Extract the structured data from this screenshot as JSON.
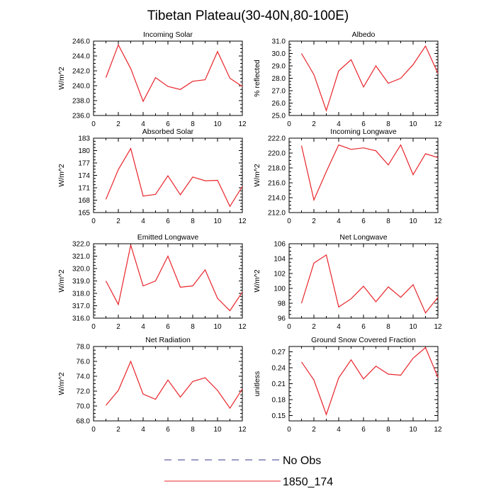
{
  "figure": {
    "title": "Tibetan Plateau(30-40N,80-100E)",
    "legend": [
      {
        "label": "No Obs",
        "color": "#3a3a8c",
        "dash": true
      },
      {
        "label": "1850_174",
        "color": "#e8242a",
        "dash": false
      }
    ]
  },
  "chart_data": [
    {
      "type": "line",
      "title": "Incoming Solar",
      "ylabel": "W/m^2",
      "xlim": [
        0,
        12
      ],
      "ylim": [
        236,
        246
      ],
      "xticks": [
        "0",
        "2",
        "4",
        "6",
        "8",
        "10",
        "12"
      ],
      "yticks": [
        "236.0",
        "238.0",
        "240.0",
        "242.0",
        "244.0",
        "246.0"
      ],
      "x": [
        1,
        2,
        3,
        4,
        5,
        6,
        7,
        8,
        9,
        10,
        11,
        12
      ],
      "series": [
        {
          "name": "1850_174",
          "color": "#e8242a",
          "values": [
            241.1,
            245.5,
            242.3,
            237.9,
            241.1,
            239.9,
            239.5,
            240.6,
            240.8,
            244.6,
            241.0,
            239.9
          ]
        }
      ]
    },
    {
      "type": "line",
      "title": "Albedo",
      "ylabel": "% reflected",
      "xlim": [
        0,
        12
      ],
      "ylim": [
        25,
        31
      ],
      "xticks": [
        "0",
        "2",
        "4",
        "6",
        "8",
        "10",
        "12"
      ],
      "yticks": [
        "25.0",
        "26.0",
        "27.0",
        "28.0",
        "29.0",
        "30.0",
        "31.0"
      ],
      "x": [
        1,
        2,
        3,
        4,
        5,
        6,
        7,
        8,
        9,
        10,
        11,
        12
      ],
      "series": [
        {
          "name": "1850_174",
          "color": "#e8242a",
          "values": [
            30.0,
            28.3,
            25.4,
            28.6,
            29.5,
            27.3,
            29.0,
            27.6,
            28.0,
            29.1,
            30.6,
            28.4
          ]
        }
      ]
    },
    {
      "type": "line",
      "title": "Absorbed Solar",
      "ylabel": "W/m^2",
      "xlim": [
        0,
        12
      ],
      "ylim": [
        165,
        183
      ],
      "xticks": [
        "0",
        "2",
        "4",
        "6",
        "8",
        "10",
        "12"
      ],
      "yticks": [
        "165",
        "168",
        "171",
        "174",
        "177",
        "180",
        "183"
      ],
      "x": [
        1,
        2,
        3,
        4,
        5,
        6,
        7,
        8,
        9,
        10,
        11,
        12
      ],
      "series": [
        {
          "name": "1850_174",
          "color": "#e8242a",
          "values": [
            168.2,
            175.4,
            180.5,
            169.0,
            169.4,
            173.9,
            169.3,
            173.6,
            172.7,
            172.8,
            166.5,
            171.3
          ]
        }
      ]
    },
    {
      "type": "line",
      "title": "Incoming Longwave",
      "ylabel": "W/m^2",
      "xlim": [
        0,
        12
      ],
      "ylim": [
        212,
        222
      ],
      "xticks": [
        "0",
        "2",
        "4",
        "6",
        "8",
        "10",
        "12"
      ],
      "yticks": [
        "212.0",
        "214.0",
        "216.0",
        "218.0",
        "220.0",
        "222.0"
      ],
      "x": [
        1,
        2,
        3,
        4,
        5,
        6,
        7,
        8,
        9,
        10,
        11,
        12
      ],
      "series": [
        {
          "name": "1850_174",
          "color": "#e8242a",
          "values": [
            221.0,
            213.7,
            217.5,
            221.1,
            220.5,
            220.7,
            220.3,
            218.4,
            221.1,
            217.1,
            219.9,
            219.4
          ]
        }
      ]
    },
    {
      "type": "line",
      "title": "Emitted Longwave",
      "ylabel": "W/m^2",
      "xlim": [
        0,
        12
      ],
      "ylim": [
        316,
        322
      ],
      "xticks": [
        "0",
        "2",
        "4",
        "6",
        "8",
        "10",
        "12"
      ],
      "yticks": [
        "316.0",
        "317.0",
        "318.0",
        "319.0",
        "320.0",
        "321.0",
        "322.0"
      ],
      "x": [
        1,
        2,
        3,
        4,
        5,
        6,
        7,
        8,
        9,
        10,
        11,
        12
      ],
      "series": [
        {
          "name": "1850_174",
          "color": "#e8242a",
          "values": [
            319.0,
            317.1,
            321.9,
            318.6,
            319.0,
            321.0,
            318.5,
            318.6,
            319.9,
            317.6,
            316.6,
            318.1
          ]
        }
      ]
    },
    {
      "type": "line",
      "title": "Net Longwave",
      "ylabel": "W/m^2",
      "xlim": [
        0,
        12
      ],
      "ylim": [
        96,
        106
      ],
      "xticks": [
        "0",
        "2",
        "4",
        "6",
        "8",
        "10",
        "12"
      ],
      "yticks": [
        "96",
        "98",
        "100",
        "102",
        "104",
        "106"
      ],
      "x": [
        1,
        2,
        3,
        4,
        5,
        6,
        7,
        8,
        9,
        10,
        11,
        12
      ],
      "series": [
        {
          "name": "1850_174",
          "color": "#e8242a",
          "values": [
            98.0,
            103.4,
            104.5,
            97.5,
            98.6,
            100.3,
            98.2,
            100.2,
            98.8,
            100.5,
            96.7,
            98.8
          ]
        }
      ]
    },
    {
      "type": "line",
      "title": "Net Radiation",
      "ylabel": "W/m^2",
      "xlim": [
        0,
        12
      ],
      "ylim": [
        68,
        78
      ],
      "xticks": [
        "0",
        "2",
        "4",
        "6",
        "8",
        "10",
        "12"
      ],
      "yticks": [
        "68.0",
        "70.0",
        "72.0",
        "74.0",
        "76.0",
        "78.0"
      ],
      "x": [
        1,
        2,
        3,
        4,
        5,
        6,
        7,
        8,
        9,
        10,
        11,
        12
      ],
      "series": [
        {
          "name": "1850_174",
          "color": "#e8242a",
          "values": [
            70.1,
            72.1,
            76.0,
            71.6,
            70.9,
            73.5,
            71.2,
            73.3,
            73.8,
            72.1,
            69.7,
            72.3
          ]
        }
      ]
    },
    {
      "type": "line",
      "title": "Ground Snow Covered Fraction",
      "ylabel": "unitless",
      "xlim": [
        0,
        12
      ],
      "ylim": [
        0.14,
        0.28
      ],
      "xticks": [
        "0",
        "2",
        "4",
        "6",
        "8",
        "10",
        "12"
      ],
      "yticks": [
        "0.15",
        "0.18",
        "0.21",
        "0.24",
        "0.27"
      ],
      "yticks_values": [
        0.15,
        0.18,
        0.21,
        0.24,
        0.27
      ],
      "x": [
        1,
        2,
        3,
        4,
        5,
        6,
        7,
        8,
        9,
        10,
        11,
        12
      ],
      "series": [
        {
          "name": "1850_174",
          "color": "#e8242a",
          "values": [
            0.251,
            0.217,
            0.152,
            0.221,
            0.255,
            0.219,
            0.243,
            0.228,
            0.226,
            0.258,
            0.278,
            0.222
          ]
        }
      ]
    }
  ]
}
